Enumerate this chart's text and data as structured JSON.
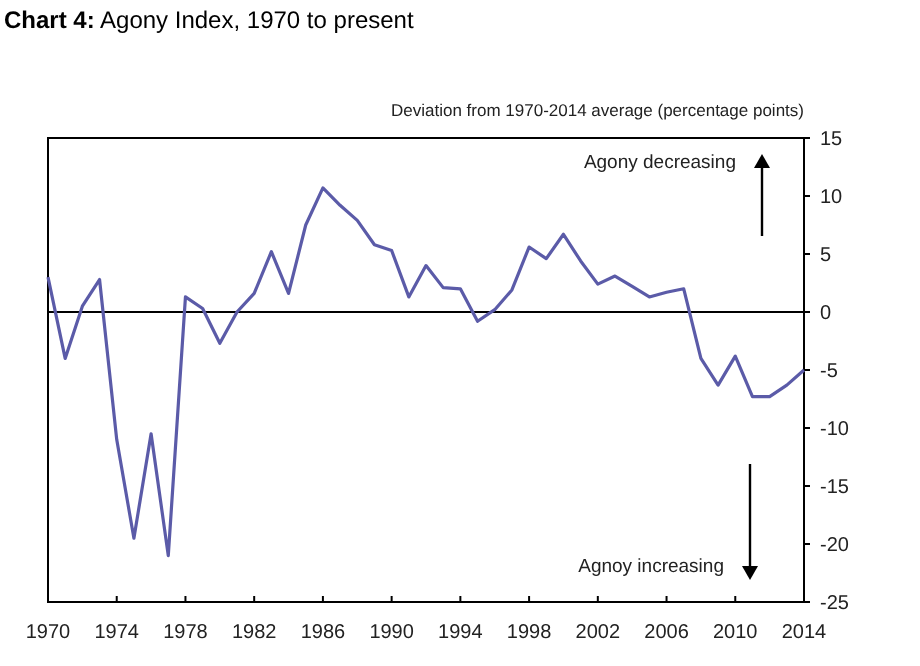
{
  "chart_data": {
    "type": "line",
    "title": "Chart 4: Agony Index, 1970 to present",
    "ylabel": "Deviation from 1970-2014 average (percentage points)",
    "x": [
      1970,
      1971,
      1972,
      1973,
      1974,
      1975,
      1976,
      1977,
      1978,
      1979,
      1980,
      1981,
      1982,
      1983,
      1984,
      1985,
      1986,
      1987,
      1988,
      1989,
      1990,
      1991,
      1992,
      1993,
      1994,
      1995,
      1996,
      1997,
      1998,
      1999,
      2000,
      2001,
      2002,
      2003,
      2004,
      2005,
      2006,
      2007,
      2008,
      2009,
      2010,
      2011,
      2012,
      2013,
      2014
    ],
    "series": [
      {
        "color": "#5b5ba8",
        "values": [
          3,
          -4,
          0.5,
          2.8,
          -11,
          -19.5,
          -10.5,
          -21,
          1.3,
          0.3,
          -2.7,
          0,
          1.6,
          5.2,
          1.6,
          7.5,
          10.7,
          9.2,
          7.9,
          5.8,
          5.3,
          1.3,
          4,
          2.1,
          2,
          -0.8,
          0.2,
          1.9,
          5.6,
          4.6,
          6.7,
          4.4,
          2.4,
          3.1,
          2.2,
          1.3,
          1.7,
          2,
          -4,
          -6.3,
          -3.8,
          -7.3,
          -7.3,
          -6.3,
          -5
        ]
      }
    ],
    "xlim": [
      1970,
      2014
    ],
    "xticks": [
      1970,
      1974,
      1978,
      1982,
      1986,
      1990,
      1994,
      1998,
      2002,
      2006,
      2010,
      2014
    ],
    "ylim": [
      -25,
      15
    ],
    "yticks": [
      -25,
      -20,
      -15,
      -10,
      -5,
      0,
      5,
      10,
      15
    ],
    "ref_lines": [
      {
        "axis": "y",
        "value": 0,
        "color": "#000000"
      }
    ],
    "annotations": [
      "Agony decreasing",
      "Agnoy increasing"
    ],
    "grid": false
  }
}
